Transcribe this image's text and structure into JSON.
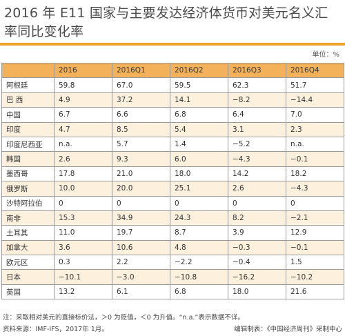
{
  "title": "2016 年 E11 国家与主要发达经济体货币对美元名义汇率同比变化率",
  "unit": "单位：%",
  "footer": {
    "note": "注：采取相对美元的直接标价法，＞0 为贬值，＜0 为升值。“n.a.”表示数据不详。",
    "source": "资料来源：IMF-IFS，2017年 1月。",
    "credit": "编辑制表：《中国经济周刊》采制中心"
  },
  "chart_data": {
    "type": "table",
    "columns": [
      "",
      "2016",
      "2016Q1",
      "2016Q2",
      "2016Q3",
      "2016Q4"
    ],
    "rows": [
      [
        "阿根廷",
        "59.8",
        "67.0",
        "59.5",
        "62.3",
        "51.7"
      ],
      [
        "巴 西",
        "4.9",
        "37.2",
        "14.1",
        "−8.2",
        "−14.4"
      ],
      [
        "中国",
        "6.7",
        "6.6",
        "6.8",
        "6.4",
        "7.0"
      ],
      [
        "印度",
        "4.7",
        "8.5",
        "5.4",
        "3.1",
        "2.3"
      ],
      [
        "印度尼西亚",
        "n.a.",
        "5.7",
        "1.4",
        "−5.2",
        "n.a."
      ],
      [
        "韩国",
        "2.6",
        "9.3",
        "6.0",
        "−4.3",
        "−0.1"
      ],
      [
        "墨西哥",
        "17.8",
        "21.0",
        "18.0",
        "14.2",
        "18.2"
      ],
      [
        "俄罗斯",
        "10.0",
        "20.0",
        "25.1",
        "2.6",
        "−4.3"
      ],
      [
        "沙特阿拉伯",
        "0",
        "0",
        "0",
        "0",
        "0"
      ],
      [
        "南非",
        "15.3",
        "34.9",
        "24.3",
        "8.2",
        "−2.1"
      ],
      [
        "土耳其",
        "11.0",
        "19.7",
        "8.7",
        "3.9",
        "12.9"
      ],
      [
        "加拿大",
        "3.6",
        "10.6",
        "4.8",
        "−0.3",
        "−0.1"
      ],
      [
        "欧元区",
        "0.3",
        "2.2",
        "−2.2",
        "−0.4",
        "1.5"
      ],
      [
        "日本",
        "−10.1",
        "−3.0",
        "−10.8",
        "−16.2",
        "−10.2"
      ],
      [
        "英国",
        "13.2",
        "6.1",
        "6.8",
        "18.0",
        "21.6"
      ]
    ]
  }
}
